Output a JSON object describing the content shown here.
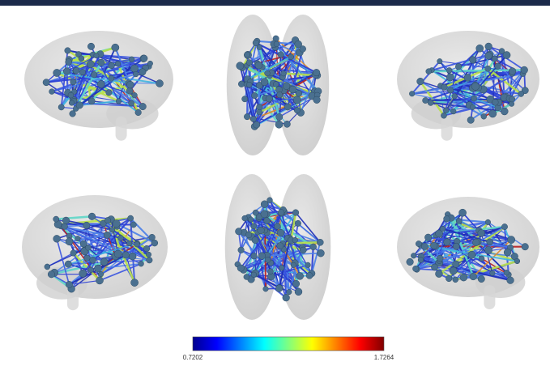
{
  "colorbar": {
    "min_label": "0.7202",
    "max_label": "1.7264"
  }
}
